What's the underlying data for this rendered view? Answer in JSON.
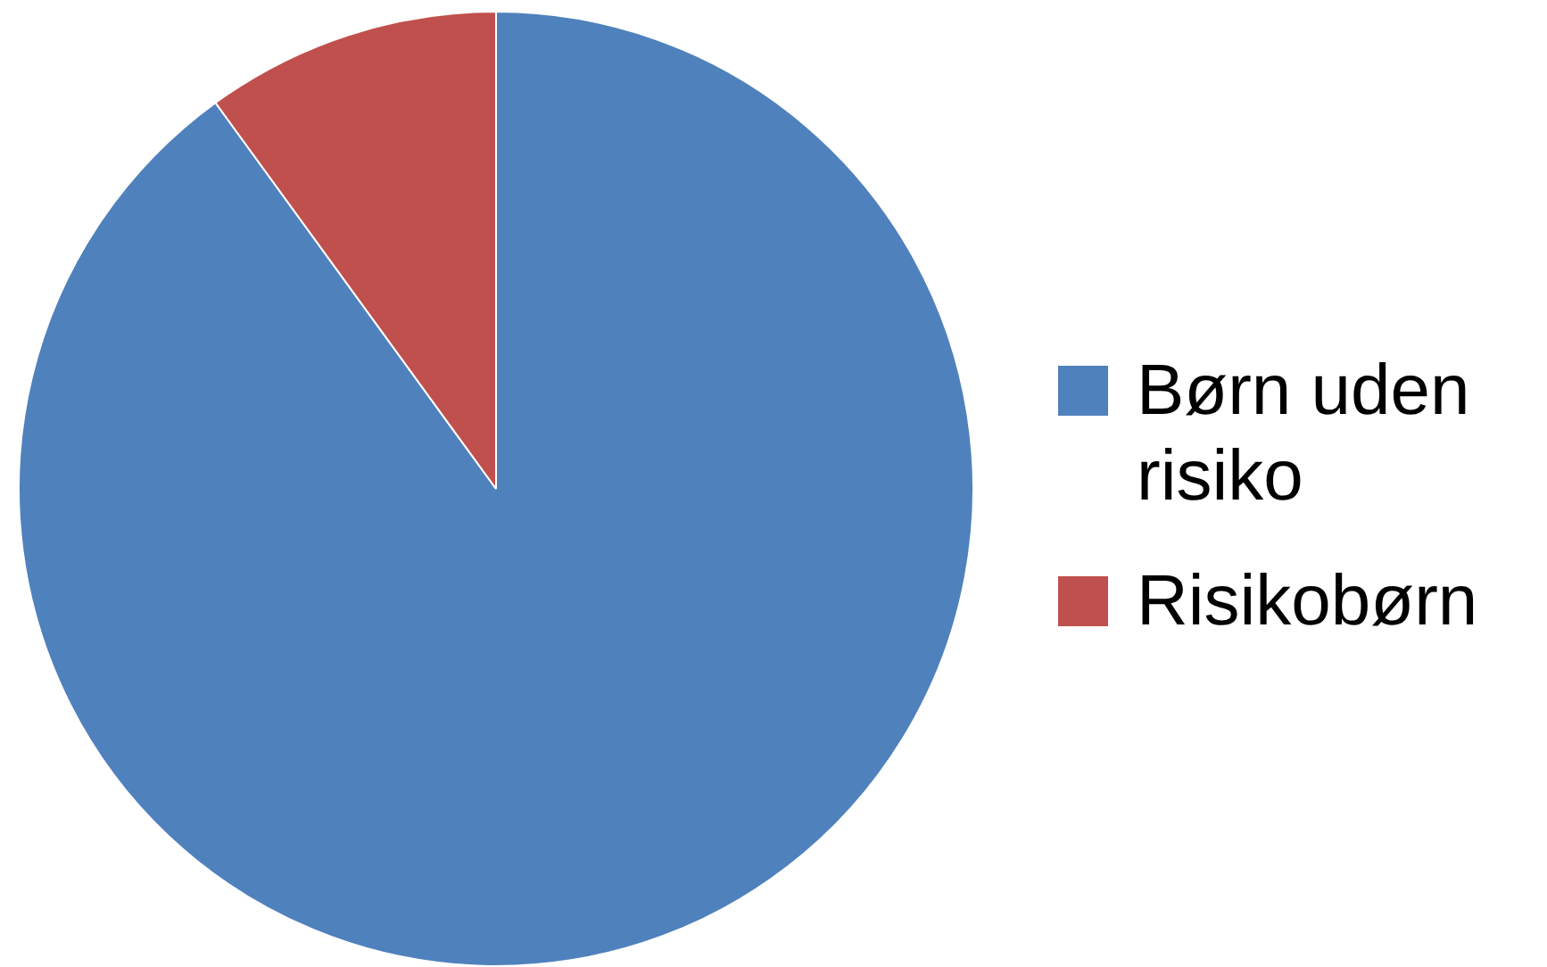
{
  "chart_data": {
    "type": "pie",
    "categories": [
      "Børn uden risiko",
      "Risikobørn"
    ],
    "values": [
      90,
      10
    ],
    "colors": [
      "#4f81bd",
      "#c0504d"
    ],
    "legend": "right"
  }
}
